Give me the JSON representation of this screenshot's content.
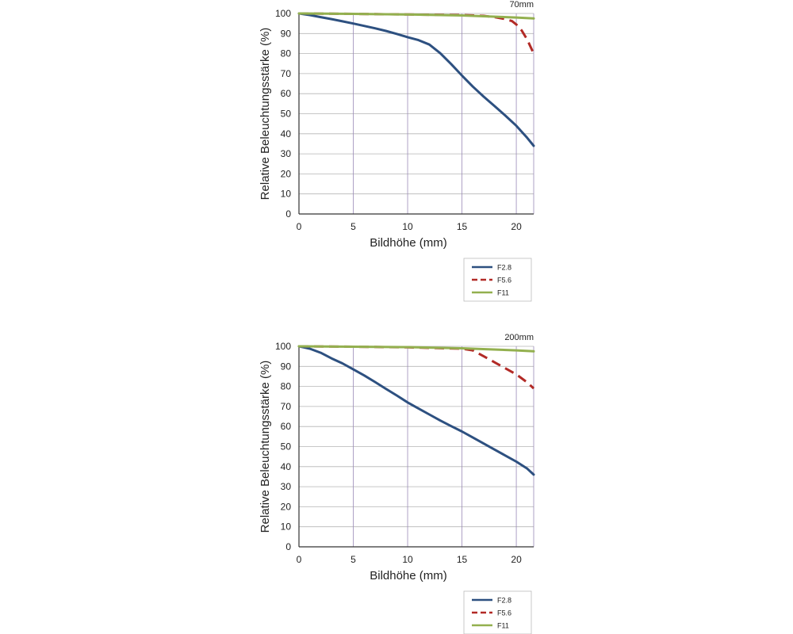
{
  "chart_data": [
    {
      "type": "line",
      "title": "70mm",
      "xlabel": "Bildhöhe (mm)",
      "ylabel": "Relative Beleuchtungsstärke (%)",
      "xlim": [
        0,
        21.6
      ],
      "ylim": [
        0,
        100
      ],
      "xticks": [
        0,
        5,
        10,
        15,
        20
      ],
      "yticks": [
        0,
        10,
        20,
        30,
        40,
        50,
        60,
        70,
        80,
        90,
        100
      ],
      "grid": true,
      "legend_position": "below-right",
      "series": [
        {
          "name": "F2.8",
          "color": "#2d5080",
          "dash": "solid",
          "x": [
            0,
            1,
            2,
            3,
            4,
            5,
            6,
            7,
            8,
            9,
            10,
            11,
            12,
            13,
            14,
            15,
            16,
            17,
            18,
            19,
            20,
            21,
            21.6
          ],
          "y": [
            100,
            99.2,
            98.2,
            97.2,
            96.1,
            95.0,
            93.8,
            92.6,
            91.3,
            89.8,
            88.2,
            86.7,
            84.5,
            80.2,
            74.8,
            69.0,
            63.5,
            58.5,
            53.8,
            49.0,
            44.0,
            38.0,
            34.0
          ]
        },
        {
          "name": "F5.6",
          "color": "#b22a26",
          "dash": "dashed",
          "x": [
            0,
            5,
            10,
            15,
            17,
            18,
            19,
            19.6,
            20,
            20.5,
            21,
            21.3,
            21.6
          ],
          "y": [
            100,
            99.8,
            99.5,
            99.2,
            98.8,
            98.2,
            97.2,
            96.2,
            94.5,
            91.5,
            87.0,
            83.5,
            80.0
          ]
        },
        {
          "name": "F11",
          "color": "#93b04f",
          "dash": "solid",
          "x": [
            0,
            5,
            10,
            15,
            20,
            21.6
          ],
          "y": [
            100,
            99.8,
            99.5,
            99.0,
            98.0,
            97.5
          ]
        }
      ]
    },
    {
      "type": "line",
      "title": "200mm",
      "xlabel": "Bildhöhe (mm)",
      "ylabel": "Relative Beleuchtungsstärke (%)",
      "xlim": [
        0,
        21.6
      ],
      "ylim": [
        0,
        100
      ],
      "xticks": [
        0,
        5,
        10,
        15,
        20
      ],
      "yticks": [
        0,
        10,
        20,
        30,
        40,
        50,
        60,
        70,
        80,
        90,
        100
      ],
      "grid": true,
      "legend_position": "below-right",
      "series": [
        {
          "name": "F2.8",
          "color": "#2d5080",
          "dash": "solid",
          "x": [
            0,
            1,
            2,
            3,
            4,
            5,
            6,
            7,
            8,
            9,
            10,
            11,
            12,
            13,
            14,
            15,
            16,
            17,
            18,
            19,
            20,
            21,
            21.6
          ],
          "y": [
            100,
            98.8,
            96.8,
            94.0,
            91.5,
            88.5,
            85.5,
            82.2,
            78.8,
            75.5,
            72.0,
            69.0,
            66.0,
            63.0,
            60.2,
            57.5,
            54.5,
            51.5,
            48.5,
            45.5,
            42.5,
            39.0,
            36.0
          ]
        },
        {
          "name": "F5.6",
          "color": "#b22a26",
          "dash": "dashed",
          "x": [
            0,
            5,
            10,
            15,
            16,
            17,
            18,
            19,
            20,
            21,
            21.6
          ],
          "y": [
            100,
            99.8,
            99.5,
            98.8,
            98.0,
            95.0,
            92.0,
            89.0,
            86.0,
            82.0,
            79.0
          ]
        },
        {
          "name": "F11",
          "color": "#93b04f",
          "dash": "solid",
          "x": [
            0,
            5,
            10,
            15,
            20,
            21.6
          ],
          "y": [
            100,
            99.8,
            99.6,
            99.0,
            98.0,
            97.5
          ]
        }
      ]
    }
  ]
}
